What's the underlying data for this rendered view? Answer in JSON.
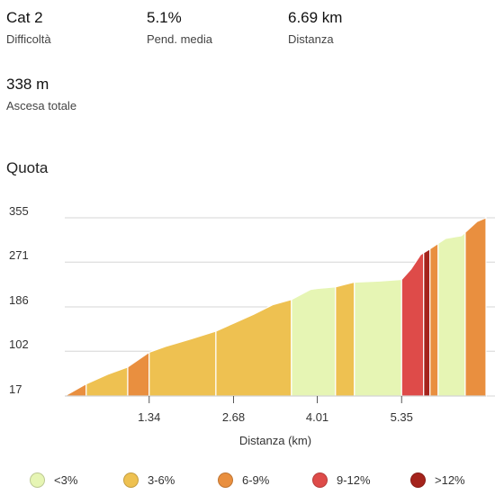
{
  "stats": [
    {
      "value": "Cat 2",
      "label": "Difficoltà"
    },
    {
      "value": "5.1%",
      "label": "Pend. media"
    },
    {
      "value": "6.69 km",
      "label": "Distanza"
    },
    {
      "value": "338 m",
      "label": "Ascesa totale"
    }
  ],
  "section_title": "Quota",
  "colors": {
    "lt3": "#e6f5b4",
    "3to6": "#eec151",
    "6to9": "#e98f3f",
    "9to12": "#de4b49",
    "gt12": "#a5231c",
    "grid": "#d6d6d6",
    "axis": "#c8c8c8"
  },
  "legend": [
    {
      "label": "<3%",
      "color": "#e6f5b4"
    },
    {
      "label": "3-6%",
      "color": "#eec151"
    },
    {
      "label": "6-9%",
      "color": "#e98f3f"
    },
    {
      "label": "9-12%",
      "color": "#de4b49"
    },
    {
      "label": ">12%",
      "color": "#a5231c"
    }
  ],
  "chart_data": {
    "type": "area",
    "xlabel": "Distanza (km)",
    "ylabel": "",
    "xlim": [
      0,
      6.69
    ],
    "ylim": [
      17,
      355
    ],
    "x_ticks": [
      1.34,
      2.68,
      4.01,
      5.35
    ],
    "x_tick_labels": [
      "1.34",
      "2.68",
      "4.01",
      "5.35"
    ],
    "y_ticks": [
      17,
      102,
      186,
      271,
      355
    ],
    "y_tick_labels": [
      "17",
      "102",
      "186",
      "271",
      "355"
    ],
    "profile": [
      [
        0,
        17
      ],
      [
        0.34,
        40
      ],
      [
        0.68,
        58
      ],
      [
        1.0,
        72
      ],
      [
        1.34,
        100
      ],
      [
        1.6,
        111
      ],
      [
        2.0,
        125
      ],
      [
        2.4,
        140
      ],
      [
        2.68,
        155
      ],
      [
        3.0,
        172
      ],
      [
        3.3,
        190
      ],
      [
        3.6,
        200
      ],
      [
        3.9,
        219
      ],
      [
        4.01,
        221
      ],
      [
        4.3,
        224
      ],
      [
        4.6,
        233
      ],
      [
        5.0,
        235
      ],
      [
        5.35,
        238
      ],
      [
        5.5,
        258
      ],
      [
        5.65,
        285
      ],
      [
        5.8,
        296
      ],
      [
        6.05,
        316
      ],
      [
        6.3,
        321
      ],
      [
        6.55,
        348
      ],
      [
        6.69,
        355
      ]
    ],
    "segments": [
      {
        "from": 0,
        "to": 0.34,
        "class": "6-9%"
      },
      {
        "from": 0.34,
        "to": 1.0,
        "class": "3-6%"
      },
      {
        "from": 1.0,
        "to": 1.34,
        "class": "6-9%"
      },
      {
        "from": 1.34,
        "to": 2.4,
        "class": "3-6%"
      },
      {
        "from": 2.4,
        "to": 3.6,
        "class": "3-6%"
      },
      {
        "from": 3.6,
        "to": 4.3,
        "class": "<3%"
      },
      {
        "from": 4.3,
        "to": 4.6,
        "class": "3-6%"
      },
      {
        "from": 4.6,
        "to": 5.35,
        "class": "<3%"
      },
      {
        "from": 5.35,
        "to": 5.7,
        "class": "9-12%"
      },
      {
        "from": 5.7,
        "to": 5.8,
        "class": ">12%"
      },
      {
        "from": 5.8,
        "to": 5.93,
        "class": "6-9%"
      },
      {
        "from": 5.93,
        "to": 6.36,
        "class": "<3%"
      },
      {
        "from": 6.36,
        "to": 6.69,
        "class": "6-9%"
      }
    ]
  }
}
